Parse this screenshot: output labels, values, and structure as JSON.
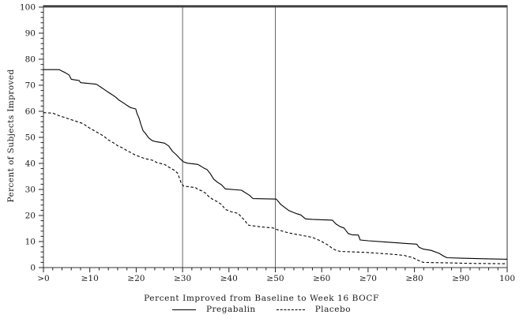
{
  "chart_data": {
    "type": "line",
    "title": "",
    "xlabel": "Percent Improved from Baseline to Week 16 BOCF",
    "ylabel": "Percent of Subjects Improved",
    "xlim": [
      0,
      100
    ],
    "ylim": [
      0,
      100
    ],
    "grid": "off",
    "legend_position": "bottom",
    "x_tick_values": [
      0,
      10,
      20,
      30,
      40,
      50,
      60,
      70,
      80,
      90,
      100
    ],
    "x_tick_labels": [
      ">0",
      "≥10",
      "≥20",
      "≥30",
      "≥40",
      "≥50",
      "≥60",
      "≥70",
      "≥80",
      "≥90",
      "100"
    ],
    "y_tick_values": [
      0,
      10,
      20,
      30,
      40,
      50,
      60,
      70,
      80,
      90,
      100
    ],
    "y_tick_labels": [
      "0",
      "10",
      "20",
      "30",
      "40",
      "50",
      "60",
      "70",
      "80",
      "90",
      "100"
    ],
    "minor_tick_step": 2,
    "reference_lines_x": [
      30,
      50
    ],
    "reference_line_color": "#666666",
    "line_color": "#000000",
    "series": [
      {
        "name": "Pregabalin",
        "style": "solid",
        "points": [
          [
            0,
            76
          ],
          [
            3.4,
            76
          ],
          [
            4.5,
            75
          ],
          [
            5.5,
            74
          ],
          [
            6,
            72.3
          ],
          [
            7.7,
            71.8
          ],
          [
            8,
            71
          ],
          [
            11.4,
            70.4
          ],
          [
            12.2,
            69.5
          ],
          [
            13.1,
            68.4
          ],
          [
            13.9,
            67.4
          ],
          [
            14.8,
            66.4
          ],
          [
            15.6,
            65.4
          ],
          [
            16.2,
            64.4
          ],
          [
            17.1,
            63.4
          ],
          [
            17.9,
            62.4
          ],
          [
            18.8,
            61.4
          ],
          [
            19.9,
            60.9
          ],
          [
            20.2,
            59
          ],
          [
            20.6,
            57.5
          ],
          [
            21,
            55
          ],
          [
            21.5,
            52.5
          ],
          [
            22,
            51.5
          ],
          [
            22.7,
            49.8
          ],
          [
            23.5,
            48.7
          ],
          [
            24.4,
            48.3
          ],
          [
            26.1,
            47.8
          ],
          [
            27,
            46.7
          ],
          [
            27.8,
            44.7
          ],
          [
            28.7,
            43.2
          ],
          [
            29.5,
            41.7
          ],
          [
            30.2,
            40.6
          ],
          [
            31,
            40.1
          ],
          [
            33.3,
            39.6
          ],
          [
            33.8,
            39.1
          ],
          [
            34.7,
            38.1
          ],
          [
            35.3,
            37.6
          ],
          [
            36,
            36
          ],
          [
            36.7,
            34
          ],
          [
            37.5,
            32.8
          ],
          [
            38.4,
            31.8
          ],
          [
            39.2,
            30.2
          ],
          [
            42.7,
            29.7
          ],
          [
            44.4,
            27.8
          ],
          [
            45.2,
            26.5
          ],
          [
            50.2,
            26.3
          ],
          [
            51.2,
            24.2
          ],
          [
            52.9,
            21.9
          ],
          [
            54.6,
            20.7
          ],
          [
            55.5,
            20.2
          ],
          [
            56.5,
            18.7
          ],
          [
            58,
            18.5
          ],
          [
            62.3,
            18.2
          ],
          [
            63.1,
            16.7
          ],
          [
            64,
            15.7
          ],
          [
            64.8,
            15.2
          ],
          [
            65.7,
            13.1
          ],
          [
            66.5,
            12.6
          ],
          [
            67.9,
            12.5
          ],
          [
            68.3,
            10.6
          ],
          [
            70,
            10.3
          ],
          [
            74,
            9.8
          ],
          [
            78.5,
            9.2
          ],
          [
            80.5,
            9
          ],
          [
            81,
            7.8
          ],
          [
            81.9,
            7.1
          ],
          [
            83.6,
            6.6
          ],
          [
            85.3,
            5.5
          ],
          [
            86.2,
            4.5
          ],
          [
            87,
            3.8
          ],
          [
            90,
            3.6
          ],
          [
            95,
            3.4
          ],
          [
            100,
            3.2
          ]
        ]
      },
      {
        "name": "Placebo",
        "style": "dashed",
        "points": [
          [
            0,
            59.5
          ],
          [
            2,
            59.3
          ],
          [
            3.4,
            58.3
          ],
          [
            5.1,
            57.3
          ],
          [
            6.8,
            56.3
          ],
          [
            8.5,
            55.3
          ],
          [
            10,
            53.5
          ],
          [
            11.5,
            52
          ],
          [
            12.5,
            51
          ],
          [
            13.3,
            50
          ],
          [
            14,
            49
          ],
          [
            15,
            48
          ],
          [
            16,
            46.8
          ],
          [
            17,
            46
          ],
          [
            17.9,
            45
          ],
          [
            19,
            44
          ],
          [
            19.6,
            43.4
          ],
          [
            21,
            42.4
          ],
          [
            22,
            41.8
          ],
          [
            23.5,
            41.2
          ],
          [
            24.5,
            40.3
          ],
          [
            26.1,
            39.6
          ],
          [
            27,
            38.6
          ],
          [
            28.2,
            37.4
          ],
          [
            28.9,
            36.3
          ],
          [
            29.3,
            34.5
          ],
          [
            29.7,
            32.5
          ],
          [
            30.2,
            31.3
          ],
          [
            32.8,
            30.7
          ],
          [
            33.3,
            30
          ],
          [
            34.1,
            29.5
          ],
          [
            35,
            28.5
          ],
          [
            35.8,
            27
          ],
          [
            36.7,
            26
          ],
          [
            37.5,
            25.3
          ],
          [
            38.4,
            24.2
          ],
          [
            39.2,
            22.4
          ],
          [
            40.4,
            21.5
          ],
          [
            42,
            20.8
          ],
          [
            42.7,
            19.4
          ],
          [
            43.5,
            18
          ],
          [
            44,
            16.5
          ],
          [
            44.4,
            16.2
          ],
          [
            47,
            15.6
          ],
          [
            49.5,
            15.2
          ],
          [
            50.3,
            14.6
          ],
          [
            52.9,
            13.3
          ],
          [
            55,
            12.6
          ],
          [
            58,
            11.6
          ],
          [
            59.7,
            10.3
          ],
          [
            61,
            9
          ],
          [
            61.4,
            8.6
          ],
          [
            62.2,
            7.5
          ],
          [
            63.1,
            6.6
          ],
          [
            64,
            6.2
          ],
          [
            67,
            6
          ],
          [
            70,
            5.8
          ],
          [
            73,
            5.4
          ],
          [
            76,
            5
          ],
          [
            78,
            4.6
          ],
          [
            78.5,
            4.2
          ],
          [
            79.5,
            4
          ],
          [
            80.5,
            3
          ],
          [
            81.9,
            2
          ],
          [
            84,
            1.9
          ],
          [
            88,
            1.8
          ],
          [
            92,
            1.6
          ],
          [
            100,
            1.5
          ]
        ]
      }
    ]
  },
  "legend": {
    "pregabalin_label": "Pregabalin",
    "placebo_label": "Placebo"
  }
}
